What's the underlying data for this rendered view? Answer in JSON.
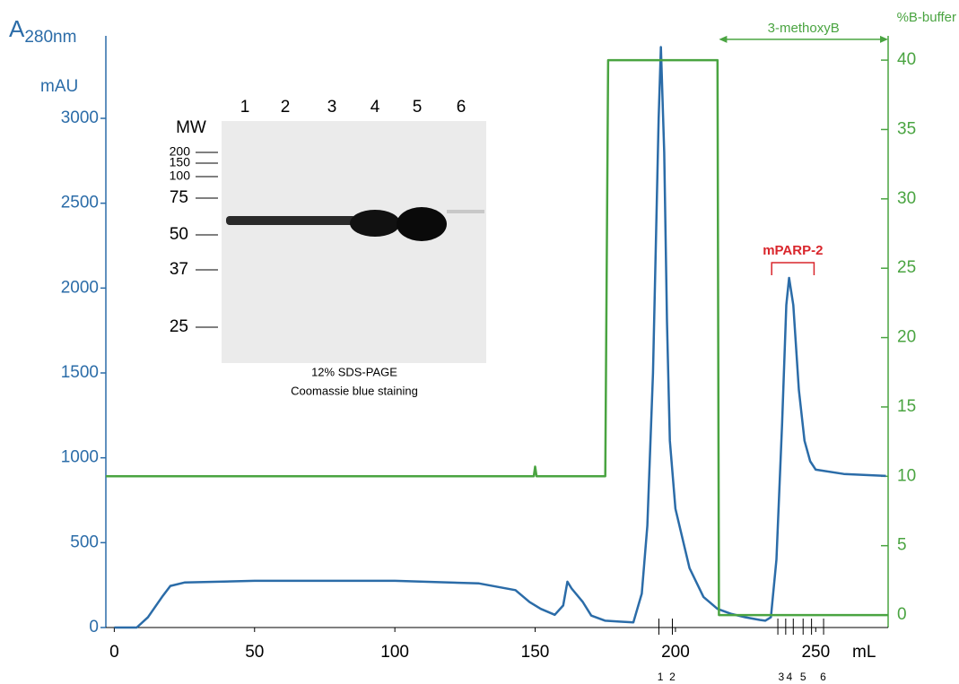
{
  "chart_data": {
    "type": "line",
    "y_label": {
      "main": "A",
      "sub": "280nm"
    },
    "y_unit": "mAU",
    "y2_label": "%B-buffer",
    "x_unit": "mL",
    "xlim": [
      -3,
      275.8
    ],
    "ylim": [
      0,
      3486
    ],
    "y2lim": [
      -0.9,
      41.75
    ],
    "xticks": [
      0,
      50,
      100,
      150,
      200,
      250
    ],
    "yticks": [
      0,
      500,
      1000,
      1500,
      2000,
      2500,
      3000
    ],
    "y2ticks": [
      0,
      5,
      10,
      15,
      20,
      25,
      30,
      35,
      40
    ],
    "series": [
      {
        "name": "A280nm",
        "color": "#2b6ca8",
        "axis": "y",
        "x": [
          0,
          8,
          12,
          17,
          20,
          25,
          50,
          100,
          130,
          143,
          148,
          152,
          157,
          160,
          161.5,
          163,
          167,
          170,
          175,
          180,
          185,
          188,
          190,
          192,
          194,
          194.8,
          196,
          197,
          198,
          200,
          205,
          210,
          215,
          220,
          225,
          230,
          232,
          234,
          236,
          238,
          239.5,
          240.5,
          242,
          244,
          246,
          248,
          250,
          260,
          275
        ],
        "values": [
          0,
          0,
          60,
          180,
          245,
          265,
          275,
          275,
          260,
          220,
          150,
          110,
          75,
          130,
          270,
          230,
          150,
          70,
          40,
          35,
          30,
          200,
          600,
          1500,
          3000,
          3420,
          2800,
          1800,
          1100,
          700,
          350,
          180,
          110,
          80,
          60,
          45,
          40,
          60,
          400,
          1200,
          1900,
          2060,
          1900,
          1400,
          1100,
          980,
          930,
          905,
          893
        ]
      },
      {
        "name": "%B-buffer",
        "color": "#4aa441",
        "axis": "y2",
        "x": [
          -3,
          149.5,
          150,
          150.5,
          175,
          176,
          215,
          215.5,
          275.8
        ],
        "values": [
          10,
          10,
          10.7,
          10,
          10,
          40,
          40,
          0,
          0
        ]
      }
    ],
    "fraction_ticks": [
      194.1,
      198.9,
      236.5,
      239.3,
      242,
      245.5,
      248.5,
      252.8
    ],
    "fraction_labels": [
      {
        "label": "1",
        "x": 194.6
      },
      {
        "label": "2",
        "x": 198.9
      },
      {
        "label": "3",
        "x": 237.7
      },
      {
        "label": "4",
        "x": 240.6
      },
      {
        "label": "5",
        "x": 245.5
      },
      {
        "label": "6",
        "x": 252.6
      }
    ],
    "annotations": [
      {
        "text": "3-methoxyB",
        "x0": 215.5,
        "x1": 275.8,
        "y2": 41.5
      },
      {
        "text": "mPARP-2",
        "x0": 234.3,
        "x1": 249.4,
        "y": 2150
      }
    ],
    "gel": {
      "mw_title": "MW",
      "lanes": [
        "1",
        "2",
        "3",
        "4",
        "5",
        "6"
      ],
      "mw_markers": [
        200,
        150,
        100,
        75,
        50,
        37,
        25
      ],
      "caption": [
        "12% SDS-PAGE",
        "Coomassie blue staining"
      ]
    }
  }
}
